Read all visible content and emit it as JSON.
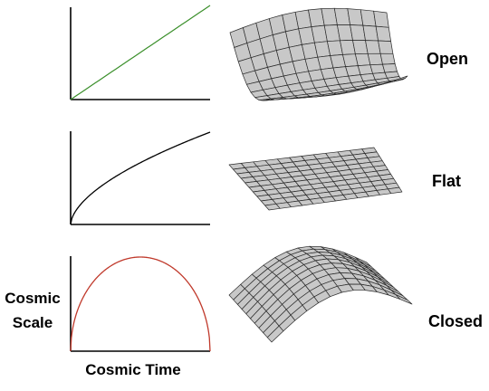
{
  "diagram": {
    "rows": [
      {
        "geometry_label": "Open",
        "curve_type": "linear",
        "curve_color": "#3a8f2a",
        "surface": "saddle"
      },
      {
        "geometry_label": "Flat",
        "curve_type": "square-root",
        "curve_color": "#000000",
        "surface": "plane"
      },
      {
        "geometry_label": "Closed",
        "curve_type": "arch",
        "curve_color": "#c0392b",
        "surface": "dome"
      }
    ],
    "y_axis_label_line1": "Cosmic",
    "y_axis_label_line2": "Scale",
    "x_axis_label": "Cosmic Time",
    "surface_fill": "#c8c8c8",
    "surface_grid": "#2a2a2a"
  }
}
